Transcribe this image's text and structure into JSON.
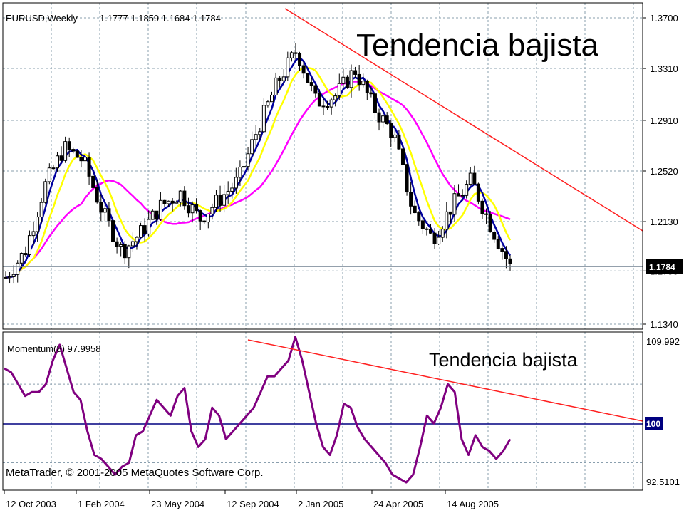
{
  "main_panel": {
    "header": {
      "symbol_timeframe": "EURUSD,Weekly",
      "ohlc": "1.1777 1.1859 1.1684 1.1784"
    },
    "annotation": "Tendencia bajista",
    "current_price_label": "1.1784",
    "y_tick_labels": [
      "1.3700",
      "1.3310",
      "1.2910",
      "1.2520",
      "1.2130",
      "1.1750",
      "1.1340"
    ]
  },
  "momentum_panel": {
    "title": "Momentum(8) 97.9958",
    "annotation": "Tendencia bajista",
    "y_tick_labels": [
      "109.992",
      "100",
      "92.5101"
    ],
    "copyright": "MetaTrader, © 2001-2005 MetaQuotes Software Corp."
  },
  "x_tick_labels": [
    "12 Oct 2003",
    "1 Feb 2004",
    "23 May 2004",
    "12 Sep 2004",
    "2 Jan 2005",
    "24 Apr 2005",
    "14 Aug 2005"
  ],
  "colors": {
    "background": "#ffffff",
    "grid": "#8a9fae",
    "candles": "#000000",
    "ma_fast": "#0000a0",
    "ma_medium": "#ffff00",
    "ma_slow": "#ff00ff",
    "trendline": "#ff2020",
    "momentum": "#800080",
    "momentum_level": "#000080",
    "price_line": "#708090"
  },
  "chart_data": [
    {
      "type": "candlestick",
      "title": "EURUSD,Weekly",
      "x_range": [
        "12 Oct 2003",
        "Oct 2005"
      ],
      "ylim": [
        1.134,
        1.37
      ],
      "grid": true,
      "close_series": {
        "x": [
          "2003-10-12",
          "2003-11-09",
          "2003-12-07",
          "2004-01-04",
          "2004-02-01",
          "2004-03-14",
          "2004-04-11",
          "2004-05-09",
          "2004-06-06",
          "2004-07-04",
          "2004-08-01",
          "2004-08-29",
          "2004-09-26",
          "2004-10-24",
          "2004-11-21",
          "2004-12-19",
          "2005-01-16",
          "2005-02-13",
          "2005-03-13",
          "2005-04-10",
          "2005-05-08",
          "2005-06-05",
          "2005-07-03",
          "2005-07-31",
          "2005-08-28",
          "2005-09-25",
          "2005-10-16"
        ],
        "y": [
          1.17,
          1.19,
          1.24,
          1.27,
          1.26,
          1.22,
          1.19,
          1.205,
          1.225,
          1.235,
          1.215,
          1.23,
          1.245,
          1.285,
          1.32,
          1.345,
          1.305,
          1.31,
          1.33,
          1.3,
          1.28,
          1.22,
          1.2,
          1.225,
          1.245,
          1.21,
          1.1784
        ]
      },
      "annotation": "Tendencia bajista",
      "last_price": 1.1784
    },
    {
      "type": "line",
      "title": "Momentum(8) 97.9958",
      "ylim": [
        92.5101,
        109.992
      ],
      "reference_level": 100,
      "series": [
        {
          "values": [
            107,
            106.5,
            105,
            103.5,
            104,
            104,
            105,
            108,
            110,
            107,
            104,
            103,
            99,
            96,
            95.5,
            94.5,
            93.5,
            94.5,
            95,
            98.5,
            99,
            101,
            103,
            102,
            101,
            103.5,
            104.5,
            99,
            97,
            98,
            102,
            101,
            98,
            99,
            100,
            101,
            102,
            104,
            106,
            106,
            107,
            108,
            111,
            108,
            104,
            100,
            97,
            96,
            98.5,
            102.5,
            102,
            99.5,
            98,
            97,
            96,
            95,
            93.5,
            93,
            92.5,
            93.5,
            97,
            101,
            100,
            102,
            105,
            104,
            98,
            96,
            98.5,
            97,
            96.5,
            95.5,
            96.5,
            97.9958
          ]
        }
      ],
      "annotation": "Tendencia bajista"
    }
  ]
}
